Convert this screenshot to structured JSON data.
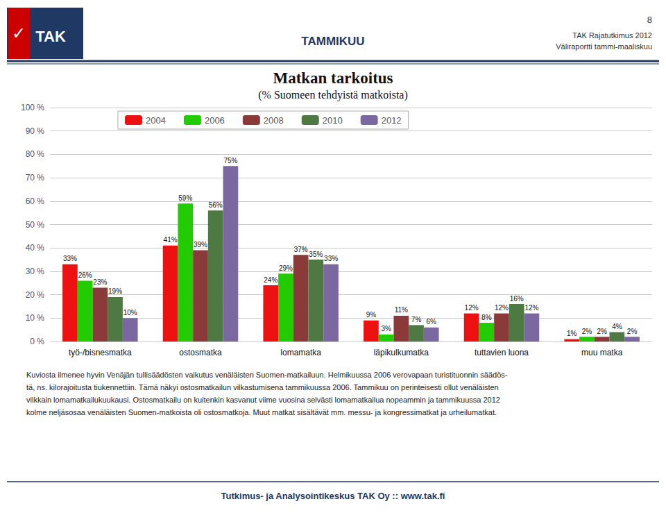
{
  "chart_data": {
    "type": "bar",
    "title": "Matkan tarkoitus",
    "subtitle": "(% Suomeen tehdyistä matkoista)",
    "annotations": [
      "TAMMIKUU",
      "8",
      "TAK Rajatutkimus 2012",
      "Väliraportti tammi-maaliskuu",
      "TAK",
      "✓",
      "Kuviosta ilmenee hyvin Venäjän tullisäädösten vaikutus venäläisten Suomen-matkailuun. Helmikuussa 2006 verovapaan turistituonnin säädös-",
      "tä, ns. kilorajoitusta tiukennettiin. Tämä näkyi ostosmatkailun vilkastumisena tammikuussa 2006. Tammikuu on perinteisesti ollut venäläisten",
      "vilkkain lomamatkailukuukausi. Ostosmatkailu on kuitenkin kasvanut viime vuosina selvästi lomamatkailua nopeammin ja tammikuussa 2012",
      "kolme neljäsosaa venäläisten Suomen-matkoista oli ostosmatkoja. Muut matkat sisältävät mm. messu- ja kongressimatkat ja urheilumatkat.",
      "Tutkimus- ja Analysointikeskus TAK Oy :: www.tak.fi"
    ],
    "categories": [
      "työ-/bisnesmatka",
      "ostosmatka",
      "lomamatka",
      "läpikulkumatka",
      "tuttavien luona",
      "muu matka"
    ],
    "series": [
      {
        "name": "2004",
        "color": "#EE1111",
        "values": [
          33,
          41,
          24,
          9,
          12,
          1
        ],
        "value_labels": [
          "33%",
          "41%",
          "24%",
          "9%",
          "12%",
          "1%"
        ]
      },
      {
        "name": "2006",
        "color": "#22CC00",
        "values": [
          26,
          59,
          29,
          3,
          8,
          2
        ],
        "value_labels": [
          "26%",
          "59%",
          "29%",
          "3%",
          "8%",
          "2%"
        ]
      },
      {
        "name": "2008",
        "color": "#8B3A3A",
        "values": [
          23,
          39,
          37,
          11,
          12,
          2
        ],
        "value_labels": [
          "23%",
          "39%",
          "37%",
          "11%",
          "12%",
          "2%"
        ]
      },
      {
        "name": "2010",
        "color": "#4F7942",
        "values": [
          19,
          56,
          35,
          7,
          16,
          4
        ],
        "value_labels": [
          "19%",
          "56%",
          "35%",
          "7%",
          "16%",
          "4%"
        ]
      },
      {
        "name": "2012",
        "color": "#7B68A0",
        "values": [
          10,
          75,
          33,
          6,
          12,
          2
        ],
        "value_labels": [
          "10%",
          "75%",
          "33%",
          "6%",
          "12%",
          "2%"
        ]
      }
    ],
    "ylim": [
      0,
      100
    ],
    "yticks": [
      {
        "value": 0,
        "label": "0 %"
      },
      {
        "value": 10,
        "label": "10 %"
      },
      {
        "value": 20,
        "label": "20 %"
      },
      {
        "value": 30,
        "label": "30 %"
      },
      {
        "value": 40,
        "label": "40 %"
      },
      {
        "value": 50,
        "label": "50 %"
      },
      {
        "value": 60,
        "label": "60 %"
      },
      {
        "value": 70,
        "label": "70 %"
      },
      {
        "value": 80,
        "label": "80 %"
      },
      {
        "value": 90,
        "label": "90 %"
      },
      {
        "value": 100,
        "label": "100 %"
      }
    ],
    "grid": true,
    "legend": "upper left",
    "data_labels": true
  }
}
